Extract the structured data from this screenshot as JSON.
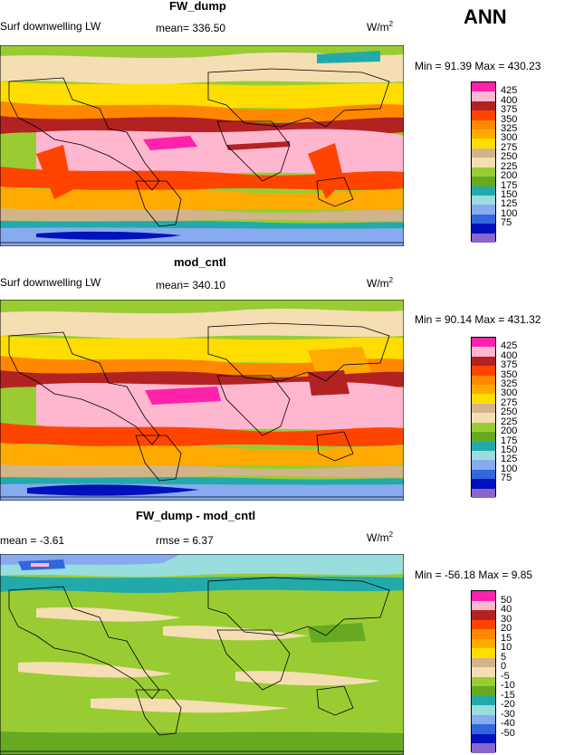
{
  "season": "ANN",
  "panels": [
    {
      "title": "FW_dump",
      "left_label": "Surf downwelling LW",
      "stat_label": "mean= 336.50",
      "units": "W/m",
      "units_exp": "2",
      "minmax": "Min =  91.39 Max = 430.23",
      "levels": [
        "425",
        "400",
        "375",
        "350",
        "325",
        "300",
        "275",
        "250",
        "225",
        "200",
        "175",
        "150",
        "125",
        "100",
        "75"
      ],
      "colors": [
        "#ff22aa",
        "#ffb6cf",
        "#b22222",
        "#ff4400",
        "#ff8800",
        "#ffaa00",
        "#ffdd00",
        "#d2b48c",
        "#f5deb3",
        "#99cc33",
        "#66aa22",
        "#22aaaa",
        "#99dddd",
        "#88aaee",
        "#3366dd",
        "#0011bb",
        "#8866cc"
      ]
    },
    {
      "title": "mod_cntl",
      "left_label": "Surf downwelling LW",
      "stat_label": "mean= 340.10",
      "units": "W/m",
      "units_exp": "2",
      "minmax": "Min =  90.14 Max = 431.32",
      "levels": [
        "425",
        "400",
        "375",
        "350",
        "325",
        "300",
        "275",
        "250",
        "225",
        "200",
        "175",
        "150",
        "125",
        "100",
        "75"
      ],
      "colors": [
        "#ff22aa",
        "#ffb6cf",
        "#b22222",
        "#ff4400",
        "#ff8800",
        "#ffaa00",
        "#ffdd00",
        "#d2b48c",
        "#f5deb3",
        "#99cc33",
        "#66aa22",
        "#22aaaa",
        "#99dddd",
        "#88aaee",
        "#3366dd",
        "#0011bb",
        "#8866cc"
      ]
    },
    {
      "title": "FW_dump - mod_cntl",
      "left_label": "mean =   -3.61",
      "stat_label": "rmse =   6.37",
      "units": "W/m",
      "units_exp": "2",
      "minmax": "Min = -56.18 Max =   9.85",
      "levels": [
        "50",
        "40",
        "30",
        "20",
        "15",
        "10",
        "5",
        "0",
        "-5",
        "-10",
        "-15",
        "-20",
        "-30",
        "-40",
        "-50"
      ],
      "colors": [
        "#ff22aa",
        "#ffb6cf",
        "#b22222",
        "#ff4400",
        "#ff8800",
        "#ffaa00",
        "#ffdd00",
        "#d2b48c",
        "#f5deb3",
        "#99cc33",
        "#66aa22",
        "#22aaaa",
        "#99dddd",
        "#88aaee",
        "#3366dd",
        "#0011bb",
        "#8866cc"
      ]
    }
  ]
}
